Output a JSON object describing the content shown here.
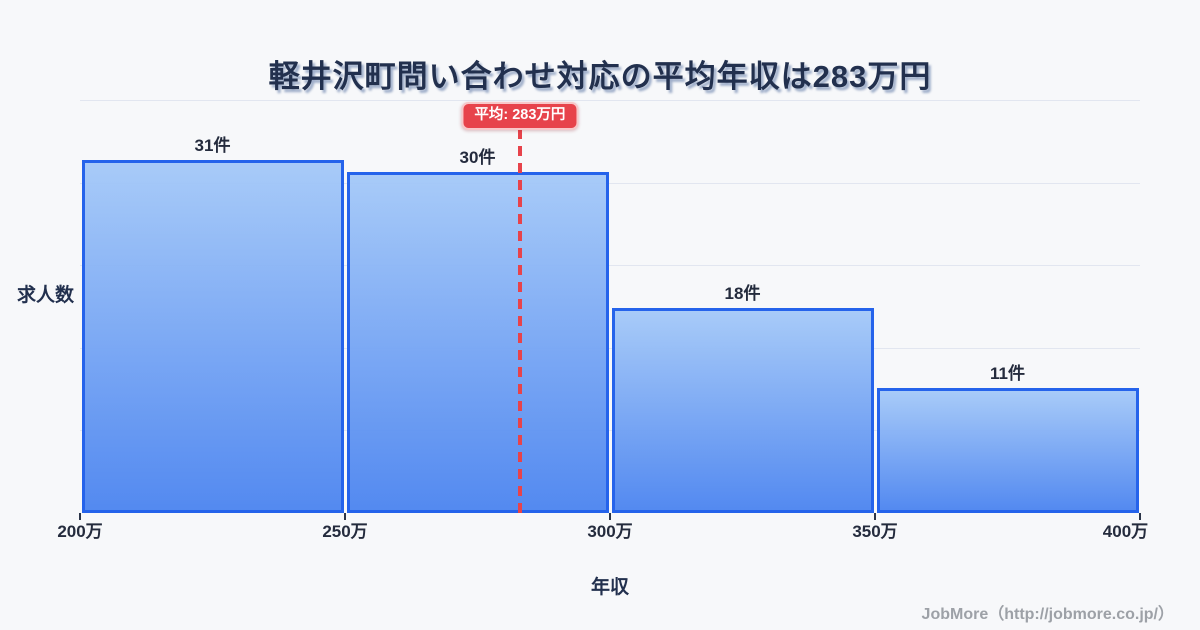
{
  "page": {
    "background_color": "#f7f8fa",
    "footer": "JobMore（http://jobmore.co.jp/）"
  },
  "chart_data": {
    "type": "bar",
    "title": "軽井沢町問い合わせ対応の平均年収は283万円",
    "xlabel": "年収",
    "ylabel": "求人数",
    "x_ticks": [
      "200万",
      "250万",
      "300万",
      "350万",
      "400万"
    ],
    "bins_man_yen": [
      [
        200,
        250
      ],
      [
        250,
        300
      ],
      [
        300,
        350
      ],
      [
        350,
        400
      ]
    ],
    "values": [
      31,
      30,
      18,
      11
    ],
    "bar_labels": [
      "31件",
      "30件",
      "18件",
      "11件"
    ],
    "unit": "件",
    "average": {
      "value_man_yen": 283,
      "label": "平均: 283万円"
    },
    "x_range_man_yen": [
      200,
      400
    ],
    "ylim": [
      0,
      36.3
    ],
    "grid_divisions": 5,
    "legend": "none",
    "colors": {
      "bar_fill_top": "#a3c8f8",
      "bar_fill_bottom": "#4e86f0",
      "bar_border": "#2563eb",
      "average_line": "#e7434b",
      "gridline": "#e2e6f0",
      "title_text": "#22304e",
      "label_text": "#242b3d",
      "footer_text": "#9da1a7"
    }
  }
}
